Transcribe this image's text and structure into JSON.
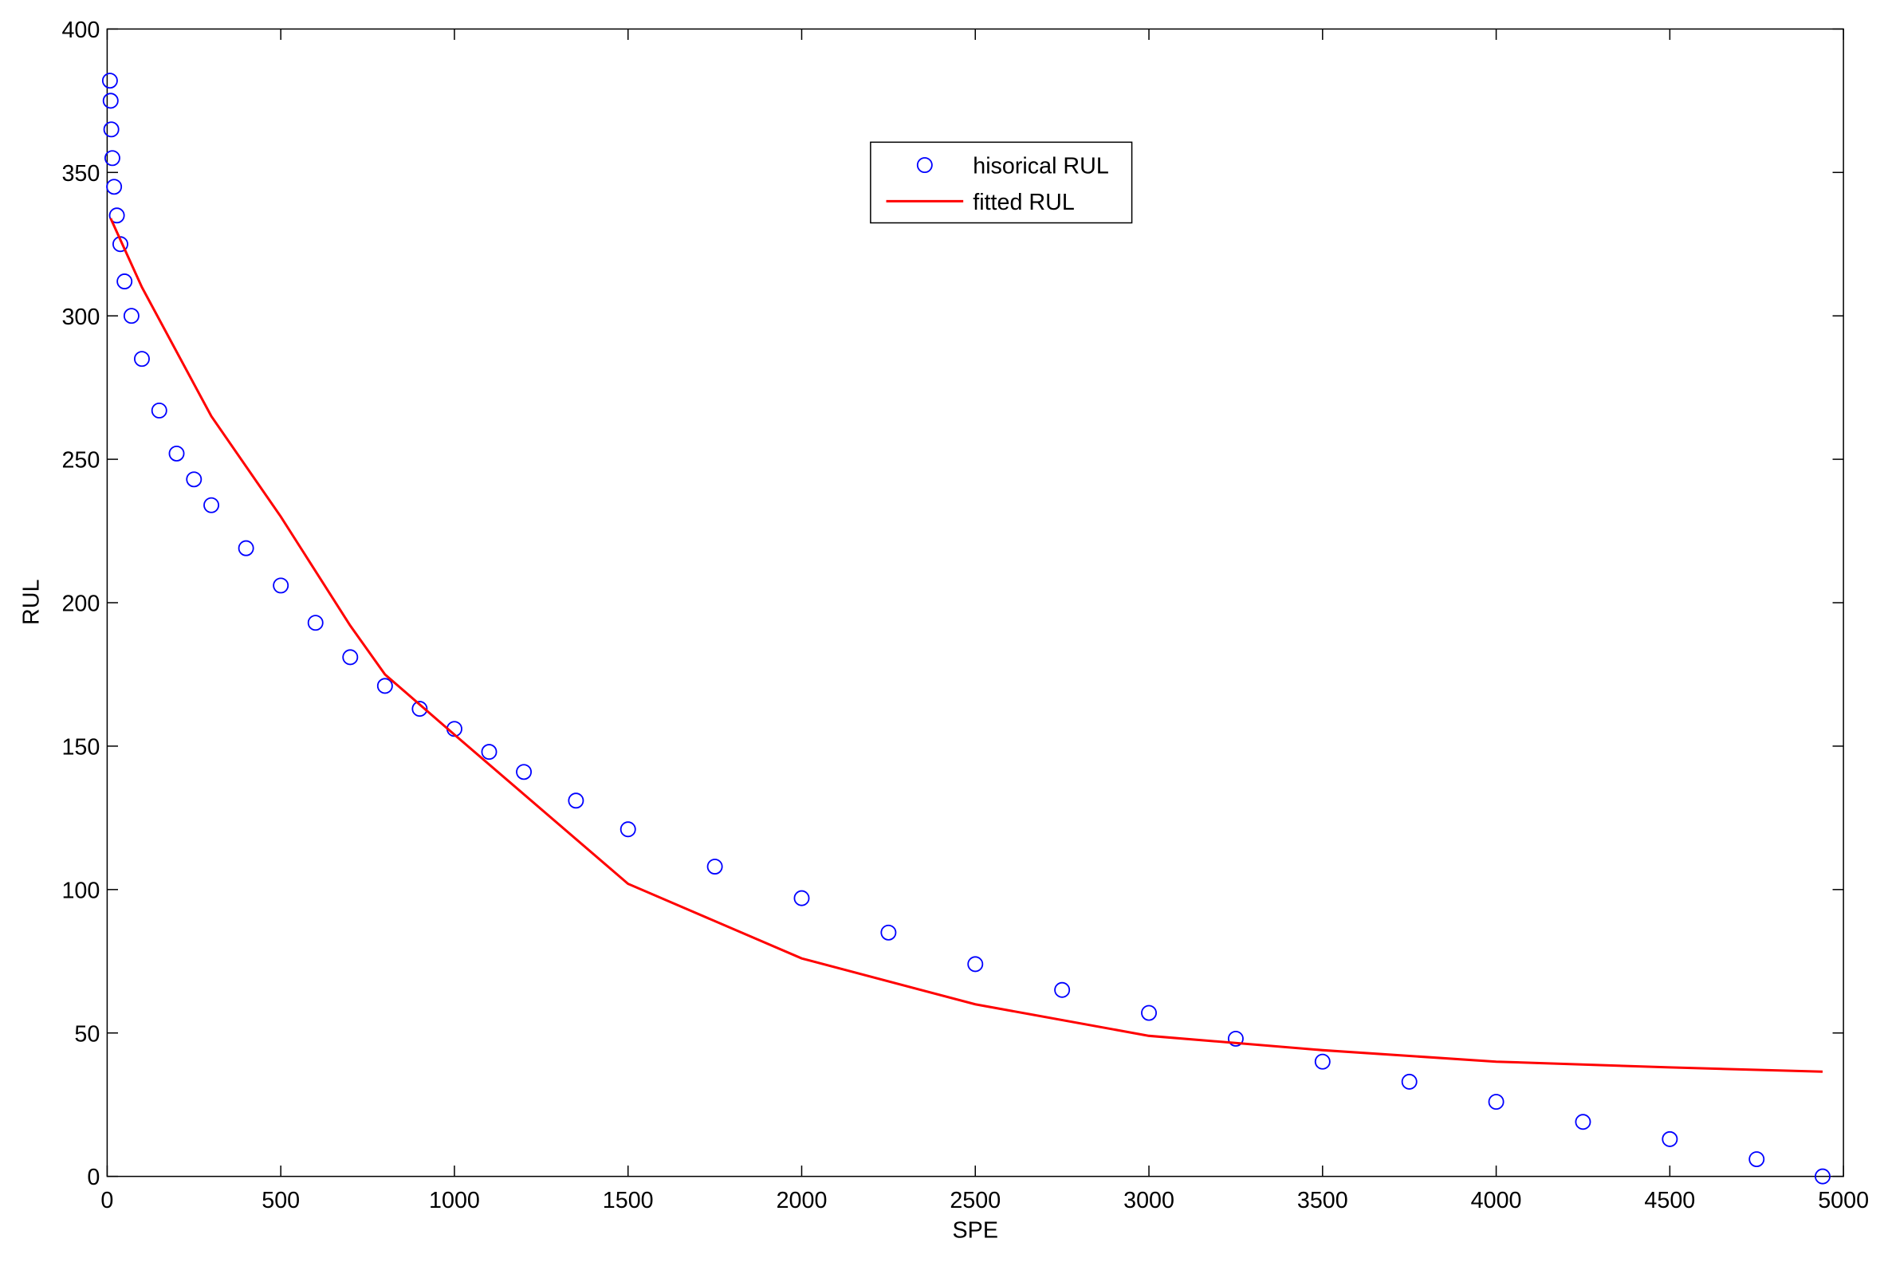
{
  "chart_data": {
    "type": "scatter",
    "xlabel": "SPE",
    "ylabel": "RUL",
    "xlim": [
      0,
      5000
    ],
    "xticks": [
      0,
      500,
      1000,
      1500,
      2000,
      2500,
      3000,
      3500,
      4000,
      4500,
      5000
    ],
    "ylim": [
      0,
      400
    ],
    "yticks": [
      0,
      50,
      100,
      150,
      200,
      250,
      300,
      350,
      400
    ],
    "grid": false,
    "legend": "upper center",
    "series": [
      {
        "name": "hisorical RUL",
        "color": "#0000ff",
        "style": "markers",
        "x": [
          8,
          10,
          12,
          15,
          20,
          28,
          38,
          50,
          70,
          100,
          150,
          200,
          250,
          300,
          400,
          500,
          600,
          700,
          800,
          900,
          1000,
          1100,
          1200,
          1350,
          1500,
          1750,
          2000,
          2250,
          2500,
          2750,
          3000,
          3250,
          3500,
          3750,
          4000,
          4250,
          4500,
          4750,
          4940
        ],
        "values": [
          382,
          375,
          365,
          355,
          345,
          335,
          325,
          312,
          300,
          285,
          267,
          252,
          243,
          234,
          219,
          206,
          193,
          181,
          171,
          163,
          156,
          148,
          141,
          131,
          121,
          108,
          97,
          85,
          74,
          65,
          57,
          48,
          40,
          33,
          26,
          19,
          13,
          6,
          0
        ]
      },
      {
        "name": "fitted RUL",
        "color": "#ff0000",
        "style": "line",
        "x": [
          10,
          100,
          300,
          500,
          700,
          800,
          1000,
          1500,
          2000,
          2500,
          3000,
          3500,
          4000,
          4500,
          4940
        ],
        "values": [
          334,
          310,
          265,
          230,
          192,
          175,
          154,
          102,
          76,
          60,
          49,
          44,
          40,
          38,
          36.5
        ]
      }
    ]
  }
}
